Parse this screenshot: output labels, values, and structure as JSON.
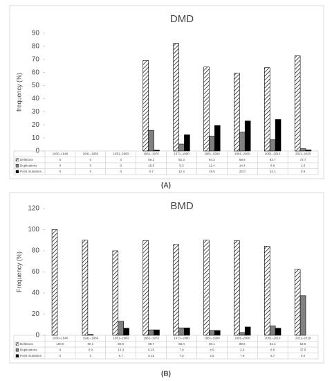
{
  "chart_data": [
    {
      "type": "bar",
      "title": "DMD",
      "y_label": "frequency (%)",
      "caption": "(A)",
      "categories": [
        "1930–1940",
        "1941–1950",
        "1951–1960",
        "1961–1970",
        "1971–1980",
        "1981–1990",
        "1991–2000",
        "2001–2010",
        "2011–2020"
      ],
      "series": [
        {
          "name": "Deletions",
          "color": "#000000",
          "pattern": "diagonal-hatch",
          "values": [
            0,
            0,
            0,
            69.2,
            82.3,
            64.2,
            59.6,
            63.7,
            72.7
          ]
        },
        {
          "name": "Duplications",
          "color": "#808080",
          "values": [
            0,
            0,
            0,
            15.8,
            5.3,
            11.4,
            14.4,
            8.6,
            1.8
          ]
        },
        {
          "name": "Point mutations",
          "color": "#000000",
          "values": [
            0,
            0,
            0,
            0.7,
            12.4,
            19.5,
            23.0,
            24.1,
            0.9
          ],
          "value_labels": [
            "0",
            "0",
            "0",
            "0.7",
            "12.4",
            "19.5",
            "23.0",
            "24.1",
            "0.9"
          ]
        }
      ],
      "ylim": [
        0,
        90
      ],
      "yticks": [
        0,
        10,
        20,
        30,
        40,
        50,
        60,
        70,
        80,
        90
      ],
      "grid": false
    },
    {
      "type": "bar",
      "title": "BMD",
      "y_label": "Frequency (%)",
      "caption": "(B)",
      "categories": [
        "1930–1940",
        "1941–1950",
        "1951–1960",
        "1961–1970",
        "1971–1980",
        "1981–1990",
        "1991–2000",
        "2001–2010",
        "2011–2019"
      ],
      "series": [
        {
          "name": "Deletions",
          "color": "#000000",
          "pattern": "diagonal-hatch",
          "values": [
            100,
            90.1,
            80,
            89.7,
            86,
            90.1,
            89.5,
            84.4,
            62.5
          ],
          "value_labels": [
            "100.0",
            "90.1",
            "80.0",
            "89.7",
            "86.0",
            "90.1",
            "89.5",
            "84.4",
            "62.5"
          ]
        },
        {
          "name": "Duplications",
          "color": "#808080",
          "values": [
            0,
            0.9,
            13.3,
            5.15,
            7,
            4.5,
            2.6,
            8.9,
            37.5
          ],
          "value_labels": [
            "0",
            "0.9",
            "13.3",
            "5.15",
            "7.0",
            "4.5",
            "2.6",
            "8.9",
            "37.5"
          ]
        },
        {
          "name": "Point mutations",
          "color": "#000000",
          "values": [
            0,
            0,
            6.7,
            5.15,
            7,
            4.5,
            7.9,
            6.7,
            0
          ],
          "value_labels": [
            "0",
            "0",
            "6.7",
            "5.15",
            "7.0",
            "4.5",
            "7.9",
            "6.7",
            "0.0"
          ]
        }
      ],
      "ylim": [
        0,
        120
      ],
      "yticks": [
        0,
        20,
        40,
        60,
        80,
        100,
        120
      ],
      "grid": false
    }
  ]
}
